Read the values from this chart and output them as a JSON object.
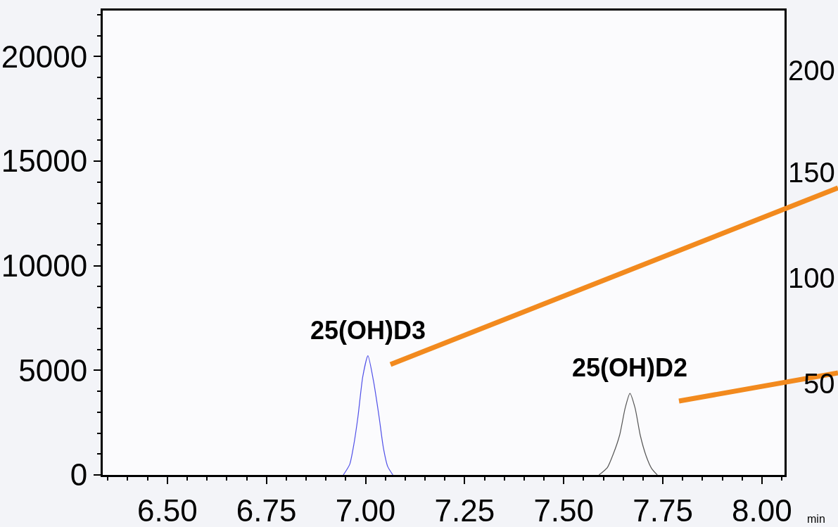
{
  "chart_data": {
    "type": "line",
    "xlabel": "min",
    "xlim": [
      6.337,
      8.057
    ],
    "ylim": [
      0,
      22200
    ],
    "xticks": [
      {
        "value": 6.35,
        "label": null
      },
      {
        "value": 6.4,
        "label": null
      },
      {
        "value": 6.45,
        "label": null
      },
      {
        "value": 6.5,
        "label": "6.50"
      },
      {
        "value": 6.55,
        "label": null
      },
      {
        "value": 6.6,
        "label": null
      },
      {
        "value": 6.65,
        "label": null
      },
      {
        "value": 6.7,
        "label": null
      },
      {
        "value": 6.75,
        "label": "6.75"
      },
      {
        "value": 6.8,
        "label": null
      },
      {
        "value": 6.85,
        "label": null
      },
      {
        "value": 6.9,
        "label": null
      },
      {
        "value": 6.95,
        "label": null
      },
      {
        "value": 7.0,
        "label": "7.00"
      },
      {
        "value": 7.05,
        "label": null
      },
      {
        "value": 7.1,
        "label": null
      },
      {
        "value": 7.15,
        "label": null
      },
      {
        "value": 7.2,
        "label": null
      },
      {
        "value": 7.25,
        "label": "7.25"
      },
      {
        "value": 7.3,
        "label": null
      },
      {
        "value": 7.35,
        "label": null
      },
      {
        "value": 7.4,
        "label": null
      },
      {
        "value": 7.45,
        "label": null
      },
      {
        "value": 7.5,
        "label": "7.50"
      },
      {
        "value": 7.55,
        "label": null
      },
      {
        "value": 7.6,
        "label": null
      },
      {
        "value": 7.65,
        "label": null
      },
      {
        "value": 7.7,
        "label": null
      },
      {
        "value": 7.75,
        "label": "7.75"
      },
      {
        "value": 7.8,
        "label": null
      },
      {
        "value": 7.85,
        "label": null
      },
      {
        "value": 7.9,
        "label": null
      },
      {
        "value": 7.95,
        "label": null
      },
      {
        "value": 8.0,
        "label": "8.00"
      },
      {
        "value": 8.05,
        "label": null
      }
    ],
    "yticks": [
      0,
      {
        "value": 1000,
        "label": null
      },
      {
        "value": 2000,
        "label": null
      },
      {
        "value": 3000,
        "label": null
      },
      {
        "value": 4000,
        "label": null
      },
      5000,
      {
        "value": 6000,
        "label": null
      },
      {
        "value": 7000,
        "label": null
      },
      {
        "value": 8000,
        "label": null
      },
      {
        "value": 9000,
        "label": null
      },
      10000,
      {
        "value": 11000,
        "label": null
      },
      {
        "value": 12000,
        "label": null
      },
      {
        "value": 13000,
        "label": null
      },
      {
        "value": 14000,
        "label": null
      },
      15000,
      {
        "value": 16000,
        "label": null
      },
      {
        "value": 17000,
        "label": null
      },
      {
        "value": 18000,
        "label": null
      },
      {
        "value": 19000,
        "label": null
      },
      20000,
      {
        "value": 21000,
        "label": null
      },
      {
        "value": 22000,
        "label": null
      }
    ],
    "marker": "none",
    "line_style": "solid",
    "series": [
      {
        "color": "#5050e8",
        "x": [
          6.944,
          6.96,
          6.97,
          6.981,
          6.993,
          7.006,
          7.02,
          7.034,
          7.045,
          7.056,
          7.069
        ],
        "values": [
          0,
          500,
          1400,
          2800,
          4700,
          5700,
          4500,
          2800,
          1300,
          400,
          0
        ]
      },
      {
        "color": "#555555",
        "x": [
          7.589,
          7.61,
          7.625,
          7.641,
          7.655,
          7.667,
          7.68,
          7.693,
          7.708,
          7.722,
          7.736
        ],
        "values": [
          0,
          350,
          1000,
          1900,
          3200,
          3900,
          3200,
          1900,
          900,
          300,
          0
        ]
      }
    ],
    "annotations": [
      {
        "text": "25(OH)D3",
        "x": 7.006,
        "y": 5700
      },
      {
        "text": "25(OH)D2",
        "x": 7.667,
        "y": 3900
      },
      "200",
      "150",
      "100",
      "50"
    ]
  }
}
